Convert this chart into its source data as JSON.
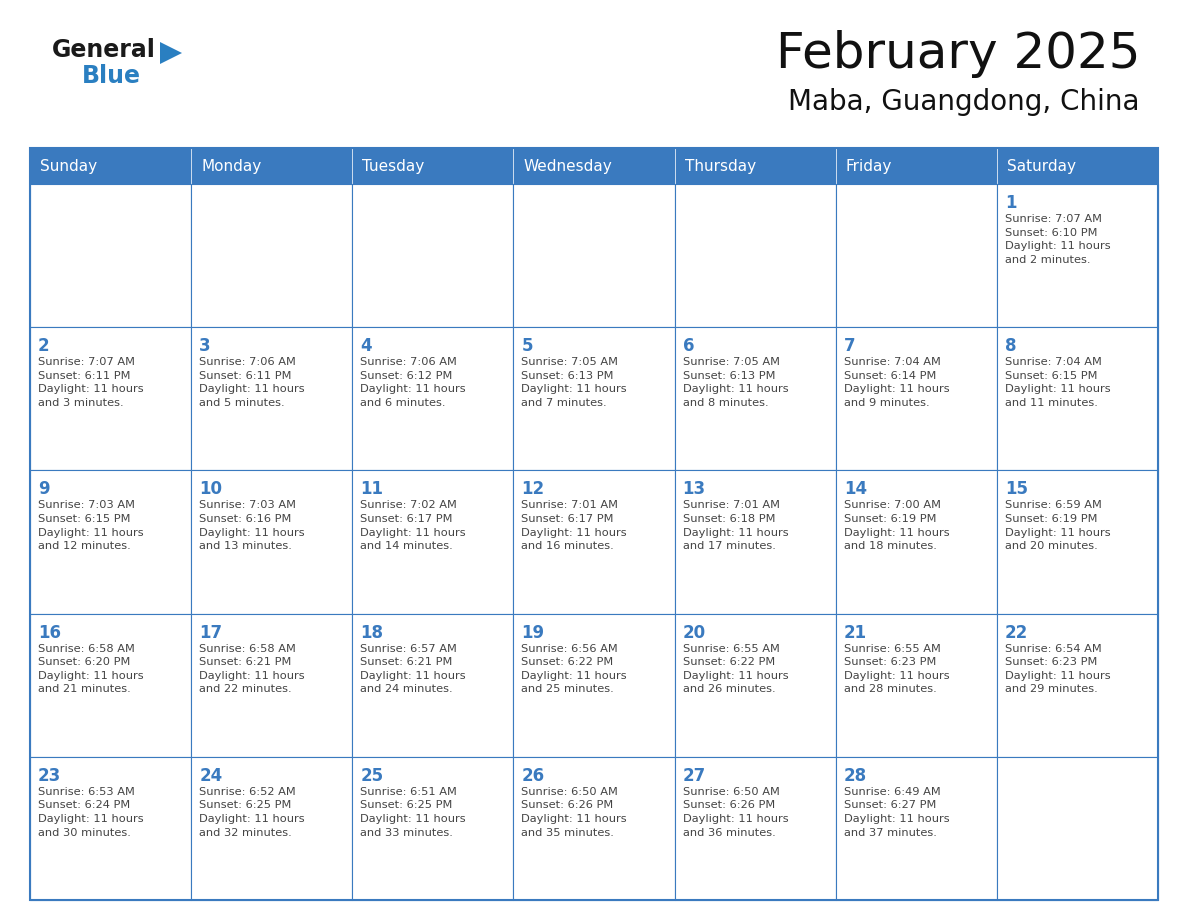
{
  "title": "February 2025",
  "subtitle": "Maba, Guangdong, China",
  "header_color": "#3a7abf",
  "header_text_color": "#ffffff",
  "cell_bg_color": "#ffffff",
  "border_color": "#3a7abf",
  "day_number_color": "#3a7abf",
  "text_color": "#444444",
  "grid_color": "#3a7abf",
  "days_of_week": [
    "Sunday",
    "Monday",
    "Tuesday",
    "Wednesday",
    "Thursday",
    "Friday",
    "Saturday"
  ],
  "weeks": [
    [
      {
        "day": "",
        "info": ""
      },
      {
        "day": "",
        "info": ""
      },
      {
        "day": "",
        "info": ""
      },
      {
        "day": "",
        "info": ""
      },
      {
        "day": "",
        "info": ""
      },
      {
        "day": "",
        "info": ""
      },
      {
        "day": "1",
        "info": "Sunrise: 7:07 AM\nSunset: 6:10 PM\nDaylight: 11 hours\nand 2 minutes."
      }
    ],
    [
      {
        "day": "2",
        "info": "Sunrise: 7:07 AM\nSunset: 6:11 PM\nDaylight: 11 hours\nand 3 minutes."
      },
      {
        "day": "3",
        "info": "Sunrise: 7:06 AM\nSunset: 6:11 PM\nDaylight: 11 hours\nand 5 minutes."
      },
      {
        "day": "4",
        "info": "Sunrise: 7:06 AM\nSunset: 6:12 PM\nDaylight: 11 hours\nand 6 minutes."
      },
      {
        "day": "5",
        "info": "Sunrise: 7:05 AM\nSunset: 6:13 PM\nDaylight: 11 hours\nand 7 minutes."
      },
      {
        "day": "6",
        "info": "Sunrise: 7:05 AM\nSunset: 6:13 PM\nDaylight: 11 hours\nand 8 minutes."
      },
      {
        "day": "7",
        "info": "Sunrise: 7:04 AM\nSunset: 6:14 PM\nDaylight: 11 hours\nand 9 minutes."
      },
      {
        "day": "8",
        "info": "Sunrise: 7:04 AM\nSunset: 6:15 PM\nDaylight: 11 hours\nand 11 minutes."
      }
    ],
    [
      {
        "day": "9",
        "info": "Sunrise: 7:03 AM\nSunset: 6:15 PM\nDaylight: 11 hours\nand 12 minutes."
      },
      {
        "day": "10",
        "info": "Sunrise: 7:03 AM\nSunset: 6:16 PM\nDaylight: 11 hours\nand 13 minutes."
      },
      {
        "day": "11",
        "info": "Sunrise: 7:02 AM\nSunset: 6:17 PM\nDaylight: 11 hours\nand 14 minutes."
      },
      {
        "day": "12",
        "info": "Sunrise: 7:01 AM\nSunset: 6:17 PM\nDaylight: 11 hours\nand 16 minutes."
      },
      {
        "day": "13",
        "info": "Sunrise: 7:01 AM\nSunset: 6:18 PM\nDaylight: 11 hours\nand 17 minutes."
      },
      {
        "day": "14",
        "info": "Sunrise: 7:00 AM\nSunset: 6:19 PM\nDaylight: 11 hours\nand 18 minutes."
      },
      {
        "day": "15",
        "info": "Sunrise: 6:59 AM\nSunset: 6:19 PM\nDaylight: 11 hours\nand 20 minutes."
      }
    ],
    [
      {
        "day": "16",
        "info": "Sunrise: 6:58 AM\nSunset: 6:20 PM\nDaylight: 11 hours\nand 21 minutes."
      },
      {
        "day": "17",
        "info": "Sunrise: 6:58 AM\nSunset: 6:21 PM\nDaylight: 11 hours\nand 22 minutes."
      },
      {
        "day": "18",
        "info": "Sunrise: 6:57 AM\nSunset: 6:21 PM\nDaylight: 11 hours\nand 24 minutes."
      },
      {
        "day": "19",
        "info": "Sunrise: 6:56 AM\nSunset: 6:22 PM\nDaylight: 11 hours\nand 25 minutes."
      },
      {
        "day": "20",
        "info": "Sunrise: 6:55 AM\nSunset: 6:22 PM\nDaylight: 11 hours\nand 26 minutes."
      },
      {
        "day": "21",
        "info": "Sunrise: 6:55 AM\nSunset: 6:23 PM\nDaylight: 11 hours\nand 28 minutes."
      },
      {
        "day": "22",
        "info": "Sunrise: 6:54 AM\nSunset: 6:23 PM\nDaylight: 11 hours\nand 29 minutes."
      }
    ],
    [
      {
        "day": "23",
        "info": "Sunrise: 6:53 AM\nSunset: 6:24 PM\nDaylight: 11 hours\nand 30 minutes."
      },
      {
        "day": "24",
        "info": "Sunrise: 6:52 AM\nSunset: 6:25 PM\nDaylight: 11 hours\nand 32 minutes."
      },
      {
        "day": "25",
        "info": "Sunrise: 6:51 AM\nSunset: 6:25 PM\nDaylight: 11 hours\nand 33 minutes."
      },
      {
        "day": "26",
        "info": "Sunrise: 6:50 AM\nSunset: 6:26 PM\nDaylight: 11 hours\nand 35 minutes."
      },
      {
        "day": "27",
        "info": "Sunrise: 6:50 AM\nSunset: 6:26 PM\nDaylight: 11 hours\nand 36 minutes."
      },
      {
        "day": "28",
        "info": "Sunrise: 6:49 AM\nSunset: 6:27 PM\nDaylight: 11 hours\nand 37 minutes."
      },
      {
        "day": "",
        "info": ""
      }
    ]
  ],
  "logo_general_color": "#1a1a1a",
  "logo_blue_color": "#2a7fc1",
  "logo_triangle_color": "#2a7fc1",
  "fig_width": 11.88,
  "fig_height": 9.18,
  "dpi": 100
}
